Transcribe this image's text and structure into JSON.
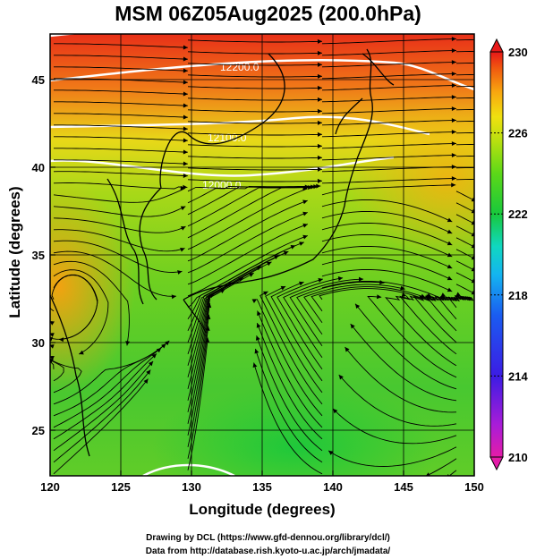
{
  "title": "MSM 06Z05Aug2025 (200.0hPa)",
  "ylabel": "Latitude  (degrees)",
  "xlabel": "Longitude (degrees)",
  "footer_line1": "Drawing by DCL (https://www.gfd-dennou.org/library/dcl/)",
  "footer_line2": "Data from http://database.rish.kyoto-u.ac.jp/arch/jmadata/",
  "map": {
    "lon_range": [
      120,
      150
    ],
    "lat_range": [
      22.4,
      47.6
    ],
    "lon_ticks": [
      120,
      125,
      130,
      135,
      140,
      145,
      150
    ],
    "lat_ticks": [
      25,
      30,
      35,
      40,
      45
    ],
    "contour_labels": [
      "12200.0",
      "12100.0",
      "12000.0"
    ]
  },
  "colorbar": {
    "min": 210,
    "max": 230,
    "tick_labels": [
      "230",
      "226",
      "222",
      "218",
      "214",
      "210"
    ],
    "colors": [
      "#e41ca8",
      "#a81cd8",
      "#3c1ce4",
      "#1a5cf0",
      "#14b4f0",
      "#10d8c0",
      "#18c83c",
      "#5cd818",
      "#b8e010",
      "#f0e010",
      "#f8a810",
      "#f05810",
      "#e81818"
    ]
  }
}
